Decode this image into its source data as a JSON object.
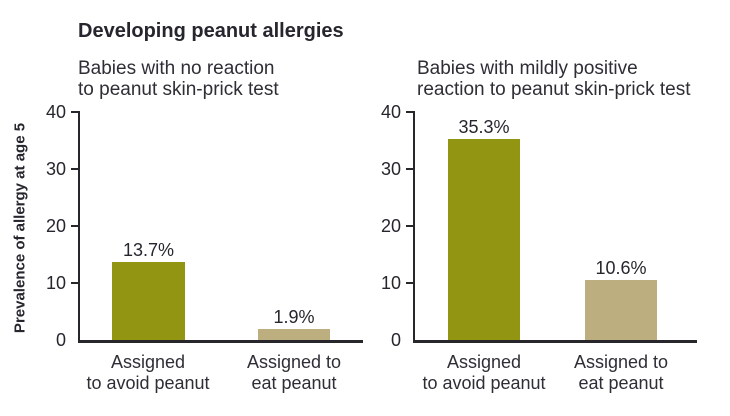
{
  "title": "Developing peanut allergies",
  "ylabel": "Prevalence of allergy at age 5",
  "colors": {
    "bar_avoid": "#929512",
    "bar_eat": "#bcae7e",
    "text": "#2b2b33",
    "axis": "#26262b"
  },
  "chart_data": [
    {
      "type": "bar",
      "subtitle": "Babies with no reaction to peanut skin-prick test",
      "subtitle_lines": [
        "Babies with no reaction",
        "to peanut skin-prick test"
      ],
      "categories": [
        "Assigned to avoid peanut",
        "Assigned to eat peanut"
      ],
      "categories_lines": [
        [
          "Assigned",
          "to avoid peanut"
        ],
        [
          "Assigned to",
          "eat peanut"
        ]
      ],
      "values": [
        13.7,
        1.9
      ],
      "value_labels": [
        "13.7%",
        "1.9%"
      ],
      "ylabel": "Prevalence of allergy at age 5",
      "ylim": [
        0,
        40
      ],
      "yticks": [
        0,
        10,
        20,
        30,
        40
      ],
      "grid": false,
      "legend": "none"
    },
    {
      "type": "bar",
      "subtitle": "Babies with mildly positive reaction to peanut skin-prick test",
      "subtitle_lines": [
        "Babies with mildly positive",
        "reaction to peanut skin-prick test"
      ],
      "categories": [
        "Assigned to avoid peanut",
        "Assigned to eat peanut"
      ],
      "categories_lines": [
        [
          "Assigned",
          "to avoid peanut"
        ],
        [
          "Assigned to",
          "eat peanut"
        ]
      ],
      "values": [
        35.3,
        10.6
      ],
      "value_labels": [
        "35.3%",
        "10.6%"
      ],
      "ylim": [
        0,
        40
      ],
      "yticks": [
        0,
        10,
        20,
        30,
        40
      ],
      "grid": false,
      "legend": "none"
    }
  ]
}
